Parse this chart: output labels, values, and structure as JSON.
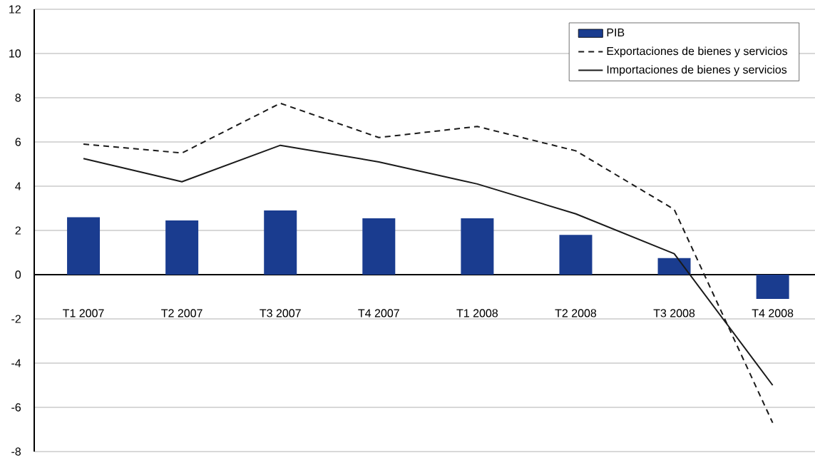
{
  "chart_data": {
    "type": "bar",
    "categories": [
      "T1 2007",
      "T2 2007",
      "T3 2007",
      "T4 2007",
      "T1 2008",
      "T2 2008",
      "T3 2008",
      "T4 2008"
    ],
    "series": [
      {
        "name": "PIB",
        "color": "#1a3c8f",
        "values": [
          2.6,
          2.45,
          2.9,
          2.55,
          2.55,
          1.8,
          0.75,
          -1.1
        ]
      },
      {
        "name": "Exportaciones de bienes y servicios",
        "type": "line",
        "line_style": "dashed",
        "color": "#1a1a1a",
        "values": [
          5.9,
          5.5,
          7.75,
          6.2,
          6.7,
          5.6,
          2.95,
          -6.7
        ]
      },
      {
        "name": "Importaciones de bienes y servicios",
        "type": "line",
        "line_style": "solid",
        "color": "#1a1a1a",
        "values": [
          5.25,
          4.2,
          5.85,
          5.1,
          4.1,
          2.75,
          0.95,
          -5.0
        ]
      }
    ],
    "ylim": [
      -8,
      12
    ],
    "yticks": [
      -8,
      -6,
      -4,
      -2,
      0,
      2,
      4,
      6,
      8,
      10,
      12
    ],
    "grid": "y",
    "legend": "top right"
  }
}
